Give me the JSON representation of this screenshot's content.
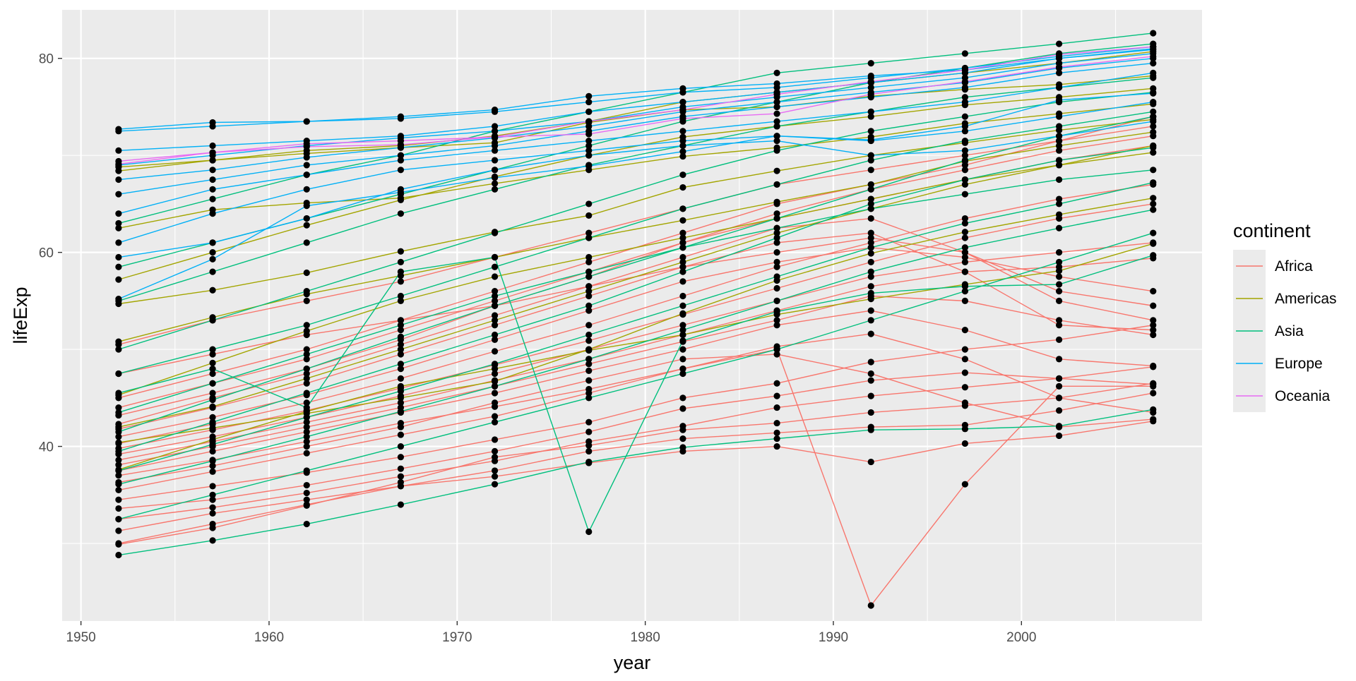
{
  "chart_data": {
    "type": "line",
    "title": "",
    "xlabel": "year",
    "ylabel": "lifeExp",
    "xlim": [
      1950,
      2007
    ],
    "ylim": [
      22,
      85
    ],
    "x_ticks": [
      1950,
      1960,
      1970,
      1980,
      1990,
      2000
    ],
    "x_tick_labels": [
      "1950",
      "1960",
      "1970",
      "1980",
      "1990",
      "2000"
    ],
    "y_ticks": [
      40,
      60,
      80
    ],
    "y_tick_labels": [
      "40",
      "60",
      "80"
    ],
    "grid": true,
    "background": "#EBEBEB",
    "point_color": "#000000",
    "x": [
      1952,
      1957,
      1962,
      1967,
      1972,
      1977,
      1982,
      1987,
      1992,
      1997,
      2002,
      2007
    ],
    "legend": {
      "title": "continent",
      "position": "right",
      "items": [
        {
          "label": "Africa",
          "color": "#F8766D"
        },
        {
          "label": "Americas",
          "color": "#A3A500"
        },
        {
          "label": "Asia",
          "color": "#00BF7D"
        },
        {
          "label": "Europe",
          "color": "#00B0F6"
        },
        {
          "label": "Oceania",
          "color": "#E76BF3"
        }
      ]
    },
    "series": [
      {
        "group": "Africa",
        "values": [
          29.9,
          31.6,
          33.9,
          36.3,
          38.9,
          40.1,
          41.7,
          42.4,
          43.5,
          44.2,
          45.0,
          46.5
        ]
      },
      {
        "group": "Africa",
        "values": [
          30.0,
          32.0,
          34.0,
          35.9,
          37.5,
          39.5,
          40.8,
          41.4,
          42.0,
          42.2,
          43.7,
          45.5
        ]
      },
      {
        "group": "Africa",
        "values": [
          31.3,
          33.1,
          34.5,
          35.9,
          36.9,
          38.3,
          39.5,
          40.0,
          38.4,
          40.3,
          41.1,
          42.6
        ]
      },
      {
        "group": "Africa",
        "values": [
          32.5,
          33.7,
          35.2,
          36.9,
          38.5,
          40.5,
          42.1,
          44.0,
          45.2,
          46.1,
          47.0,
          48.2
        ]
      },
      {
        "group": "Africa",
        "values": [
          33.6,
          34.5,
          36.0,
          37.7,
          39.5,
          41.5,
          43.9,
          45.2,
          46.8,
          47.6,
          47.0,
          46.4
        ]
      },
      {
        "group": "Africa",
        "values": [
          34.5,
          35.9,
          37.3,
          38.9,
          40.7,
          42.5,
          45.0,
          46.5,
          48.7,
          50.0,
          51.0,
          52.5
        ]
      },
      {
        "group": "Africa",
        "values": [
          35.5,
          37.4,
          39.3,
          41.2,
          43.1,
          45.5,
          48.0,
          50.3,
          51.6,
          49.0,
          45.0,
          43.5
        ]
      },
      {
        "group": "Africa",
        "values": [
          36.3,
          38.0,
          40.0,
          42.0,
          44.5,
          46.8,
          49.0,
          49.5,
          47.5,
          44.5,
          42.0,
          42.8
        ]
      },
      {
        "group": "Africa",
        "values": [
          37.0,
          38.6,
          40.5,
          42.4,
          44.1,
          45.9,
          48.0,
          50.0,
          23.6,
          36.1,
          46.2,
          46.2
        ]
      },
      {
        "group": "Africa",
        "values": [
          37.5,
          39.5,
          41.5,
          43.5,
          45.5,
          47.8,
          50.0,
          52.5,
          54.0,
          52.0,
          49.0,
          48.3
        ]
      },
      {
        "group": "Africa",
        "values": [
          38.1,
          40.0,
          42.0,
          44.0,
          46.2,
          48.5,
          50.8,
          53.0,
          55.5,
          55.0,
          53.0,
          51.5
        ]
      },
      {
        "group": "Africa",
        "values": [
          38.6,
          40.5,
          42.5,
          44.5,
          46.8,
          49.0,
          51.5,
          54.0,
          56.5,
          58.0,
          58.5,
          59.4
        ]
      },
      {
        "group": "Africa",
        "values": [
          39.2,
          41.0,
          43.0,
          45.2,
          47.5,
          50.0,
          52.5,
          55.0,
          57.5,
          59.0,
          60.0,
          61.0
        ]
      },
      {
        "group": "Africa",
        "values": [
          39.8,
          41.7,
          43.7,
          46.0,
          48.4,
          50.9,
          53.6,
          56.3,
          59.0,
          61.5,
          63.5,
          65.0
        ]
      },
      {
        "group": "Africa",
        "values": [
          40.3,
          42.3,
          44.5,
          47.0,
          49.8,
          52.5,
          55.5,
          58.5,
          61.0,
          63.5,
          65.5,
          67.0
        ]
      },
      {
        "group": "Africa",
        "values": [
          41.0,
          43.0,
          45.3,
          48.0,
          51.0,
          54.0,
          57.0,
          59.0,
          60.5,
          59.5,
          57.5,
          56.0
        ]
      },
      {
        "group": "Africa",
        "values": [
          41.8,
          44.0,
          46.5,
          49.5,
          52.5,
          55.5,
          58.5,
          61.0,
          62.0,
          58.0,
          52.5,
          52.0
        ]
      },
      {
        "group": "Africa",
        "values": [
          42.3,
          45.0,
          47.5,
          50.5,
          53.5,
          56.5,
          59.5,
          62.5,
          63.5,
          60.0,
          55.0,
          53.0
        ]
      },
      {
        "group": "Africa",
        "values": [
          43.2,
          45.5,
          48.0,
          51.0,
          54.5,
          57.5,
          61.0,
          64.0,
          66.5,
          68.5,
          70.5,
          72.0
        ]
      },
      {
        "group": "Africa",
        "values": [
          44.0,
          46.5,
          49.0,
          52.0,
          55.0,
          58.0,
          61.0,
          63.5,
          65.5,
          67.5,
          69.5,
          71.0
        ]
      },
      {
        "group": "Africa",
        "values": [
          45.0,
          47.5,
          50.0,
          53.0,
          56.0,
          59.0,
          62.0,
          65.0,
          67.0,
          69.0,
          71.5,
          74.0
        ]
      },
      {
        "group": "Africa",
        "values": [
          47.5,
          49.5,
          51.5,
          53.0,
          54.5,
          56.5,
          58.5,
          60.0,
          61.5,
          60.0,
          56.0,
          54.5
        ]
      },
      {
        "group": "Africa",
        "values": [
          50.5,
          53.0,
          55.0,
          57.0,
          59.5,
          62.0,
          64.5,
          67.0,
          68.5,
          70.0,
          71.5,
          73.0
        ]
      },
      {
        "group": "Americas",
        "values": [
          37.6,
          40.7,
          43.6,
          46.2,
          48.0,
          49.9,
          51.5,
          53.6,
          55.2,
          56.7,
          58.1,
          60.9
        ]
      },
      {
        "group": "Americas",
        "values": [
          40.4,
          41.9,
          43.4,
          45.0,
          46.7,
          50.0,
          53.7,
          57.1,
          59.9,
          62.1,
          63.9,
          65.6
        ]
      },
      {
        "group": "Americas",
        "values": [
          42.0,
          44.1,
          47.0,
          50.0,
          53.0,
          56.0,
          59.0,
          62.0,
          64.5,
          67.0,
          69.0,
          70.3
        ]
      },
      {
        "group": "Americas",
        "values": [
          45.3,
          48.6,
          51.9,
          55.0,
          57.5,
          59.5,
          61.5,
          63.5,
          65.5,
          67.5,
          69.0,
          71.0
        ]
      },
      {
        "group": "Americas",
        "values": [
          50.8,
          53.3,
          55.7,
          57.6,
          59.5,
          61.5,
          63.3,
          65.2,
          67.0,
          69.4,
          71.0,
          72.4
        ]
      },
      {
        "group": "Americas",
        "values": [
          54.7,
          56.1,
          57.9,
          60.1,
          62.1,
          63.8,
          66.7,
          68.4,
          70.0,
          71.3,
          72.6,
          73.7
        ]
      },
      {
        "group": "Americas",
        "values": [
          57.2,
          60.0,
          62.8,
          65.4,
          67.8,
          70.0,
          71.9,
          73.0,
          74.0,
          75.2,
          76.0,
          76.9
        ]
      },
      {
        "group": "Americas",
        "values": [
          62.5,
          64.4,
          65.1,
          65.6,
          67.1,
          68.5,
          69.9,
          70.8,
          71.9,
          73.3,
          74.3,
          75.3
        ]
      },
      {
        "group": "Americas",
        "values": [
          68.4,
          69.5,
          70.5,
          71.0,
          72.0,
          73.5,
          75.5,
          76.5,
          77.5,
          78.5,
          79.5,
          80.7
        ]
      },
      {
        "group": "Americas",
        "values": [
          68.8,
          69.5,
          70.2,
          70.8,
          71.3,
          73.4,
          74.7,
          75.0,
          76.1,
          76.8,
          77.3,
          78.2
        ]
      },
      {
        "group": "Asia",
        "values": [
          28.8,
          30.3,
          32.0,
          34.0,
          36.1,
          38.4,
          39.9,
          40.8,
          41.7,
          41.8,
          42.1,
          43.8
        ]
      },
      {
        "group": "Asia",
        "values": [
          32.5,
          35.0,
          37.5,
          40.0,
          42.5,
          45.0,
          47.5,
          50.0,
          53.0,
          56.0,
          59.0,
          62.0
        ]
      },
      {
        "group": "Asia",
        "values": [
          36.1,
          38.5,
          41.0,
          43.6,
          46.2,
          49.0,
          52.0,
          55.0,
          58.0,
          60.5,
          62.5,
          64.4
        ]
      },
      {
        "group": "Asia",
        "values": [
          37.5,
          40.2,
          43.0,
          45.7,
          48.5,
          51.5,
          54.5,
          57.5,
          60.5,
          63.0,
          65.0,
          67.2
        ]
      },
      {
        "group": "Asia",
        "values": [
          39.5,
          42.5,
          45.5,
          48.5,
          51.5,
          54.5,
          58.0,
          61.5,
          65.0,
          67.5,
          69.5,
          70.8
        ]
      },
      {
        "group": "Asia",
        "values": [
          41.5,
          44.8,
          48.0,
          51.3,
          54.5,
          57.5,
          60.5,
          63.5,
          66.5,
          69.5,
          72.0,
          74.0
        ]
      },
      {
        "group": "Asia",
        "values": [
          43.5,
          46.5,
          49.5,
          52.5,
          55.5,
          58.0,
          60.5,
          62.5,
          64.5,
          66.0,
          67.5,
          68.5
        ]
      },
      {
        "group": "Asia",
        "values": [
          45.5,
          48.0,
          44.0,
          58.0,
          59.5,
          31.2,
          50.9,
          53.9,
          55.8,
          56.5,
          56.7,
          59.7
        ]
      },
      {
        "group": "Asia",
        "values": [
          47.5,
          50.0,
          52.5,
          55.5,
          58.5,
          61.5,
          64.5,
          67.0,
          69.5,
          71.5,
          73.0,
          74.5
        ]
      },
      {
        "group": "Asia",
        "values": [
          50.0,
          53.0,
          56.0,
          59.0,
          62.0,
          65.0,
          68.0,
          70.5,
          72.5,
          74.0,
          75.5,
          76.5
        ]
      },
      {
        "group": "Asia",
        "values": [
          55.0,
          58.0,
          61.0,
          64.0,
          66.5,
          69.0,
          71.0,
          73.0,
          74.5,
          76.0,
          77.0,
          78.0
        ]
      },
      {
        "group": "Asia",
        "values": [
          58.5,
          61.0,
          63.5,
          66.0,
          68.5,
          71.0,
          73.5,
          75.5,
          77.5,
          79.0,
          80.5,
          81.5
        ]
      },
      {
        "group": "Asia",
        "values": [
          63.0,
          65.5,
          68.0,
          70.0,
          72.5,
          74.5,
          76.5,
          78.5,
          79.5,
          80.5,
          81.5,
          82.6
        ]
      },
      {
        "group": "Europe",
        "values": [
          55.2,
          59.3,
          64.8,
          66.2,
          67.7,
          68.9,
          70.4,
          72.0,
          71.6,
          73.0,
          75.7,
          76.4
        ]
      },
      {
        "group": "Europe",
        "values": [
          59.5,
          61.0,
          63.5,
          66.5,
          68.5,
          70.0,
          71.0,
          71.5,
          70.0,
          70.5,
          72.0,
          73.5
        ]
      },
      {
        "group": "Europe",
        "values": [
          61.0,
          64.0,
          66.5,
          68.5,
          69.5,
          70.5,
          71.5,
          72.0,
          71.5,
          72.5,
          74.0,
          75.5
        ]
      },
      {
        "group": "Europe",
        "values": [
          64.0,
          66.5,
          68.0,
          69.5,
          70.5,
          71.5,
          72.5,
          73.5,
          74.5,
          75.5,
          77.0,
          78.5
        ]
      },
      {
        "group": "Europe",
        "values": [
          66.0,
          67.5,
          69.0,
          70.0,
          71.0,
          72.5,
          74.0,
          75.0,
          76.0,
          77.0,
          78.5,
          79.5
        ]
      },
      {
        "group": "Europe",
        "values": [
          67.5,
          68.5,
          69.8,
          70.8,
          71.8,
          73.0,
          74.5,
          75.5,
          76.5,
          77.5,
          79.0,
          80.0
        ]
      },
      {
        "group": "Europe",
        "values": [
          69.0,
          70.0,
          71.0,
          71.8,
          72.5,
          73.5,
          75.0,
          76.0,
          77.0,
          78.0,
          79.5,
          80.5
        ]
      },
      {
        "group": "Europe",
        "values": [
          70.5,
          71.0,
          71.5,
          72.0,
          73.0,
          74.5,
          75.5,
          76.5,
          77.5,
          78.5,
          80.0,
          81.0
        ]
      },
      {
        "group": "Europe",
        "values": [
          72.5,
          73.0,
          73.5,
          73.8,
          74.5,
          75.5,
          76.5,
          77.0,
          78.0,
          79.0,
          80.2,
          81.2
        ]
      },
      {
        "group": "Europe",
        "values": [
          72.7,
          73.4,
          73.5,
          74.0,
          74.7,
          76.1,
          76.9,
          77.4,
          78.2,
          78.8,
          80.0,
          80.9
        ]
      },
      {
        "group": "Oceania",
        "values": [
          69.1,
          70.3,
          70.9,
          71.1,
          71.9,
          73.5,
          74.7,
          76.3,
          77.6,
          78.8,
          80.4,
          81.2
        ]
      },
      {
        "group": "Oceania",
        "values": [
          69.4,
          70.3,
          71.2,
          71.5,
          71.9,
          72.2,
          73.8,
          74.3,
          76.3,
          77.6,
          79.1,
          80.2
        ]
      }
    ]
  }
}
